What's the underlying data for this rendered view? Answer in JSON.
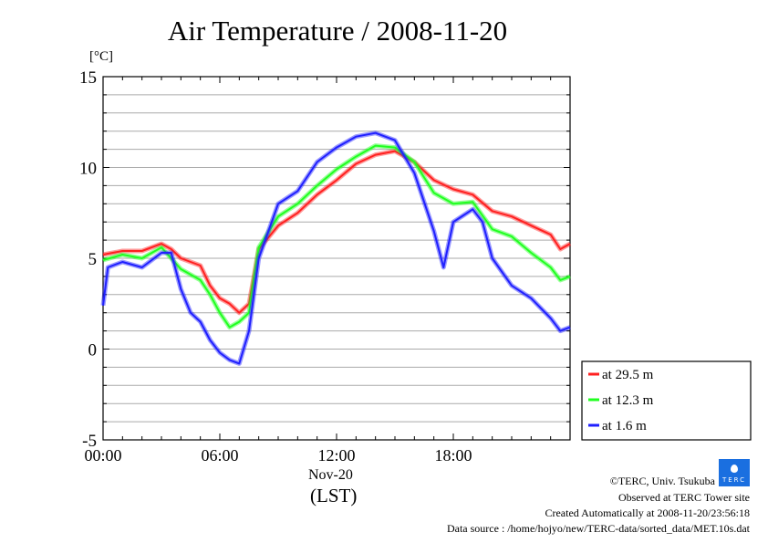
{
  "chart_data": {
    "type": "line",
    "title": "Air Temperature / 2008-11-20",
    "ylabel": "[°C]",
    "xlabel": "(LST)",
    "x_date_label": "Nov-20",
    "xlim_hours": [
      0,
      24
    ],
    "ylim": [
      -5,
      15
    ],
    "yticks": [
      -5,
      0,
      5,
      10,
      15
    ],
    "xticks": [
      {
        "h": 0,
        "label": "00:00"
      },
      {
        "h": 6,
        "label": "06:00"
      },
      {
        "h": 12,
        "label": "12:00"
      },
      {
        "h": 18,
        "label": "18:00"
      }
    ],
    "grid": true,
    "legend_position": "right-bottom",
    "series": [
      {
        "name": "at 29.5 m",
        "color": "#ff2020",
        "x": [
          0,
          1,
          2,
          3,
          3.5,
          4,
          5,
          5.5,
          6,
          6.5,
          7,
          7.5,
          8,
          9,
          10,
          11,
          12,
          13,
          14,
          15,
          16,
          17,
          18,
          19,
          20,
          21,
          22,
          23,
          23.5,
          24
        ],
        "y": [
          5.2,
          5.4,
          5.4,
          5.8,
          5.5,
          5.0,
          4.6,
          3.5,
          2.8,
          2.5,
          2.0,
          2.5,
          5.5,
          6.8,
          7.5,
          8.5,
          9.3,
          10.2,
          10.7,
          10.9,
          10.3,
          9.3,
          8.8,
          8.5,
          7.6,
          7.3,
          6.8,
          6.3,
          5.5,
          5.8
        ]
      },
      {
        "name": "at 12.3 m",
        "color": "#20ff20",
        "x": [
          0,
          1,
          2,
          3,
          4,
          5,
          5.5,
          6,
          6.5,
          7,
          7.5,
          8,
          9,
          10,
          11,
          12,
          13,
          14,
          15,
          16,
          17,
          18,
          19,
          20,
          21,
          22,
          23,
          23.5,
          24
        ],
        "y": [
          4.9,
          5.2,
          5.0,
          5.6,
          4.4,
          3.8,
          3.0,
          2.0,
          1.2,
          1.5,
          2.0,
          5.6,
          7.3,
          8.0,
          9.0,
          9.9,
          10.6,
          11.2,
          11.1,
          10.3,
          8.6,
          8.0,
          8.1,
          6.6,
          6.2,
          5.3,
          4.5,
          3.8,
          4.0
        ]
      },
      {
        "name": "at 1.6 m",
        "color": "#2020ff",
        "x": [
          0,
          0.25,
          1,
          2,
          3,
          3.5,
          4,
          4.5,
          5,
          5.5,
          6,
          6.5,
          7,
          7.5,
          8,
          9,
          10,
          11,
          12,
          13,
          14,
          15,
          16,
          17,
          17.5,
          18,
          19,
          19.5,
          20,
          21,
          22,
          23,
          23.5,
          24
        ],
        "y": [
          2.4,
          4.5,
          4.8,
          4.5,
          5.3,
          5.3,
          3.3,
          2.0,
          1.5,
          0.5,
          -0.2,
          -0.6,
          -0.8,
          1.0,
          5.0,
          8.0,
          8.7,
          10.3,
          11.1,
          11.7,
          11.9,
          11.5,
          9.7,
          6.5,
          4.5,
          7.0,
          7.7,
          7.0,
          5.0,
          3.5,
          2.8,
          1.7,
          1.0,
          1.2
        ]
      }
    ]
  },
  "footer": {
    "copyright": "©TERC, Univ. Tsukuba",
    "site": "Observed at TERC Tower site",
    "created": "Created Automatically at 2008-11-20/23:56:18",
    "source": "Data source : /home/hojyo/new/TERC-data/sorted_data/MET.10s.dat",
    "logo_text": "TERC"
  }
}
